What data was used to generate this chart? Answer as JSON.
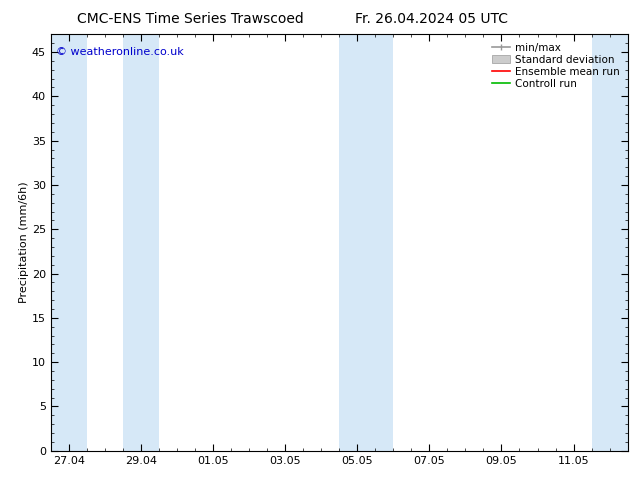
{
  "title_left": "CMC-ENS Time Series Trawscoed",
  "title_right": "Fr. 26.04.2024 05 UTC",
  "ylabel": "Precipitation (mm/6h)",
  "watermark": "© weatheronline.co.uk",
  "ylim": [
    0,
    47
  ],
  "yticks": [
    0,
    5,
    10,
    15,
    20,
    25,
    30,
    35,
    40,
    45
  ],
  "xtick_labels": [
    "27.04",
    "29.04",
    "01.05",
    "03.05",
    "05.05",
    "07.05",
    "09.05",
    "11.05"
  ],
  "xtick_positions": [
    0.5,
    2.5,
    4.5,
    6.5,
    8.5,
    10.5,
    12.5,
    14.5
  ],
  "xlim": [
    0,
    16
  ],
  "shade_bands": [
    [
      0,
      1.0
    ],
    [
      2.0,
      3.0
    ],
    [
      8.0,
      9.5
    ],
    [
      15.0,
      16.0
    ]
  ],
  "shade_color": "#d6e8f7",
  "background_color": "#ffffff",
  "plot_bg_color": "#ffffff",
  "legend_items": [
    {
      "label": "min/max",
      "color": "#999999"
    },
    {
      "label": "Standard deviation",
      "color": "#bbbbbb"
    },
    {
      "label": "Ensemble mean run",
      "color": "#ff0000"
    },
    {
      "label": "Controll run",
      "color": "#00aa00"
    }
  ],
  "title_fontsize": 10,
  "axis_fontsize": 8,
  "tick_fontsize": 8,
  "legend_fontsize": 7.5,
  "watermark_color": "#0000cc",
  "watermark_fontsize": 8
}
